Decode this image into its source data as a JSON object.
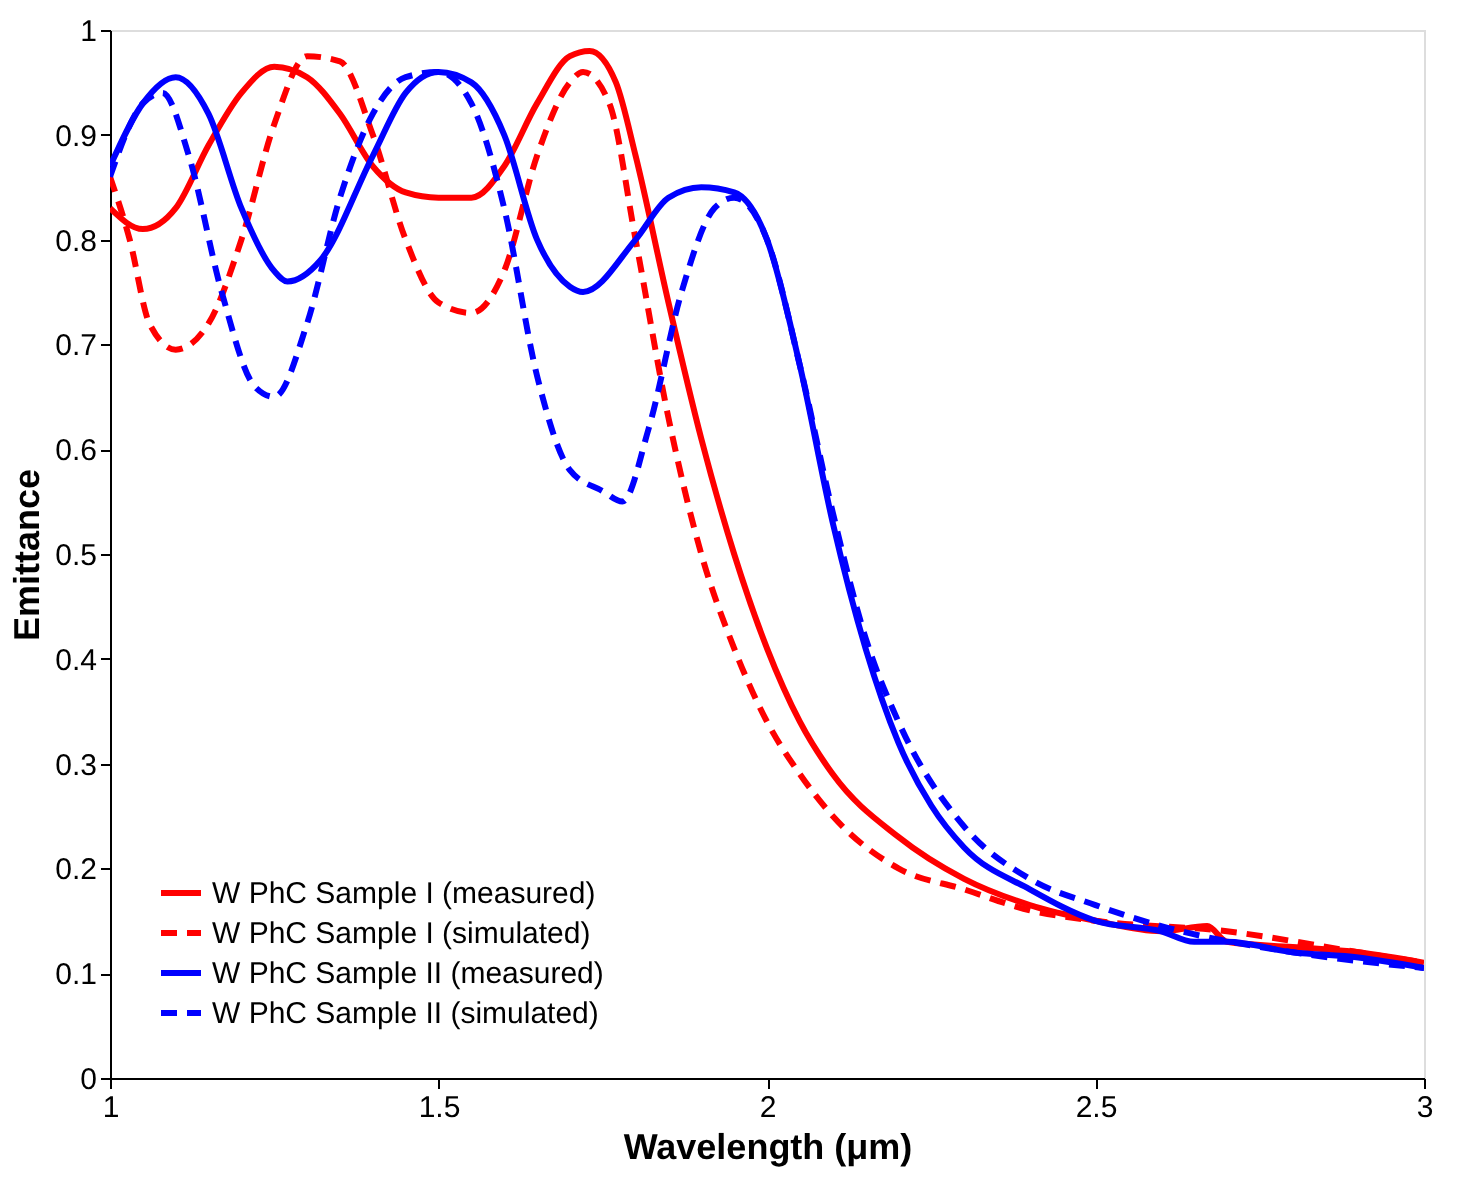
{
  "chart_data": {
    "type": "line",
    "xlabel": "Wavelength (μm)",
    "ylabel": "Emittance",
    "xlim": [
      1,
      3
    ],
    "ylim": [
      0,
      1
    ],
    "xticks": [
      1,
      1.5,
      2,
      2.5,
      3
    ],
    "yticks": [
      0,
      0.1,
      0.2,
      0.3,
      0.4,
      0.5,
      0.6,
      0.7,
      0.8,
      0.9,
      1
    ],
    "grid": false,
    "legend": "bottom left",
    "series": [
      {
        "name": "W PhC Sample I (measured)",
        "color": "#ff0000",
        "line_style": "solid",
        "x": [
          1.0,
          1.05,
          1.1,
          1.15,
          1.2,
          1.25,
          1.3,
          1.35,
          1.4,
          1.45,
          1.5,
          1.55,
          1.6,
          1.65,
          1.7,
          1.73,
          1.77,
          1.8,
          1.85,
          1.9,
          1.95,
          2.0,
          2.05,
          2.1,
          2.2,
          2.3,
          2.4,
          2.5,
          2.6,
          2.67,
          2.7,
          2.8,
          2.9,
          3.0
        ],
        "values": [
          0.83,
          0.81,
          0.83,
          0.89,
          0.94,
          0.965,
          0.955,
          0.92,
          0.87,
          0.845,
          0.84,
          0.84,
          0.87,
          0.93,
          0.975,
          0.98,
          0.95,
          0.88,
          0.74,
          0.61,
          0.5,
          0.41,
          0.34,
          0.29,
          0.23,
          0.19,
          0.165,
          0.15,
          0.14,
          0.145,
          0.13,
          0.125,
          0.12,
          0.11
        ]
      },
      {
        "name": "W PhC Sample I (simulated)",
        "color": "#ff0000",
        "line_style": "dashed",
        "x": [
          1.0,
          1.03,
          1.06,
          1.1,
          1.15,
          1.2,
          1.25,
          1.3,
          1.35,
          1.4,
          1.45,
          1.5,
          1.55,
          1.6,
          1.65,
          1.7,
          1.72,
          1.76,
          1.8,
          1.85,
          1.9,
          1.95,
          2.0,
          2.05,
          2.1,
          2.2,
          2.3,
          2.4,
          2.5,
          2.7,
          2.9,
          3.0
        ],
        "values": [
          0.86,
          0.8,
          0.72,
          0.695,
          0.72,
          0.8,
          0.91,
          0.975,
          0.97,
          0.9,
          0.8,
          0.74,
          0.73,
          0.77,
          0.88,
          0.95,
          0.96,
          0.93,
          0.8,
          0.63,
          0.5,
          0.41,
          0.34,
          0.29,
          0.25,
          0.2,
          0.18,
          0.16,
          0.15,
          0.14,
          0.12,
          0.11
        ]
      },
      {
        "name": "W PhC Sample II (measured)",
        "color": "#0000ff",
        "line_style": "solid",
        "x": [
          1.0,
          1.05,
          1.1,
          1.15,
          1.2,
          1.25,
          1.27,
          1.32,
          1.4,
          1.45,
          1.5,
          1.55,
          1.6,
          1.65,
          1.7,
          1.72,
          1.8,
          1.85,
          1.9,
          1.95,
          2.0,
          2.05,
          2.1,
          2.15,
          2.2,
          2.25,
          2.3,
          2.4,
          2.5,
          2.6,
          2.65,
          2.7,
          2.8,
          2.9,
          3.0
        ],
        "values": [
          0.87,
          0.93,
          0.955,
          0.92,
          0.83,
          0.77,
          0.76,
          0.78,
          0.88,
          0.94,
          0.96,
          0.95,
          0.9,
          0.8,
          0.755,
          0.75,
          0.8,
          0.84,
          0.85,
          0.845,
          0.8,
          0.68,
          0.53,
          0.41,
          0.32,
          0.26,
          0.22,
          0.18,
          0.15,
          0.14,
          0.13,
          0.13,
          0.12,
          0.115,
          0.105
        ]
      },
      {
        "name": "W PhC Sample II (simulated)",
        "color": "#0000ff",
        "line_style": "dashed",
        "x": [
          1.0,
          1.05,
          1.08,
          1.12,
          1.17,
          1.22,
          1.25,
          1.3,
          1.35,
          1.4,
          1.45,
          1.5,
          1.55,
          1.6,
          1.65,
          1.7,
          1.75,
          1.78,
          1.82,
          1.87,
          1.92,
          1.95,
          2.0,
          2.05,
          2.1,
          2.15,
          2.2,
          2.3,
          2.4,
          2.5,
          2.6,
          2.8,
          3.0
        ],
        "values": [
          0.86,
          0.93,
          0.94,
          0.88,
          0.75,
          0.66,
          0.65,
          0.72,
          0.84,
          0.92,
          0.955,
          0.96,
          0.93,
          0.83,
          0.67,
          0.58,
          0.56,
          0.55,
          0.62,
          0.75,
          0.83,
          0.84,
          0.8,
          0.68,
          0.54,
          0.42,
          0.34,
          0.24,
          0.19,
          0.165,
          0.145,
          0.12,
          0.105
        ]
      }
    ]
  }
}
